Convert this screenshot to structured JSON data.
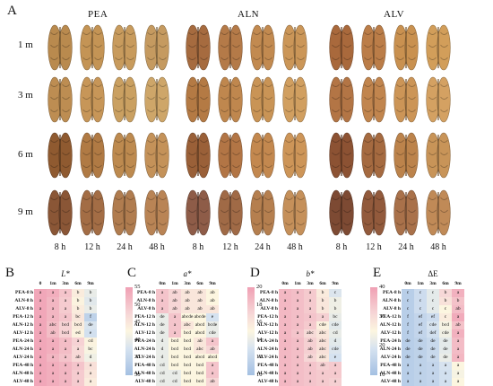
{
  "panel_a": {
    "label": "A",
    "groups": [
      "PEA",
      "ALN",
      "ALV"
    ],
    "row_labels": [
      "1 m",
      "3 m",
      "6 m",
      "9 m"
    ],
    "column_labels": [
      "8 h",
      "12 h",
      "24 h",
      "48 h"
    ],
    "kernel_colors": {
      "PEA": [
        [
          "#b98a4e",
          "#c49455",
          "#c89b5d",
          "#c59a60"
        ],
        [
          "#bd8d52",
          "#c79658",
          "#caa061",
          "#cea669"
        ],
        [
          "#8f5a30",
          "#b07a44",
          "#bd8a4f",
          "#c49259"
        ],
        [
          "#8a5636",
          "#a36d45",
          "#b07c4f",
          "#b98455"
        ]
      ],
      "ALN": [
        [
          "#a66b3f",
          "#b47a48",
          "#c28a50",
          "#cb9658"
        ],
        [
          "#b47a44",
          "#bf874e",
          "#c99456",
          "#d19f60"
        ],
        [
          "#9a6038",
          "#b27545",
          "#c3884f",
          "#cd9558"
        ],
        [
          "#8e5c48",
          "#a06a46",
          "#b57f4f",
          "#c5905a"
        ]
      ],
      "ALV": [
        [
          "#a9693c",
          "#bb7d48",
          "#c99150",
          "#d29e5a"
        ],
        [
          "#b37545",
          "#c1854e",
          "#cc9557",
          "#d4a162"
        ],
        [
          "#8c5233",
          "#a56a40",
          "#bc834b",
          "#c89458"
        ],
        [
          "#7d4a33",
          "#925a3c",
          "#a9714a",
          "#c08a57"
        ]
      ]
    }
  },
  "heatmaps": [
    {
      "label": "B",
      "title": "L*",
      "cols": [
        "0",
        "1m",
        "3m",
        "6m",
        "9m"
      ],
      "rows": [
        "PEA-8 h",
        "ALN-8 h",
        "ALV-8 h",
        "PEA-12 h",
        "ALN-12 h",
        "ALV-12 h",
        "PEA-24 h",
        "ALN-24 h",
        "ALV-24 h",
        "PEA-48 h",
        "ALN-48 h",
        "ALV-48 h"
      ],
      "cells": [
        [
          "a",
          "a",
          "a",
          "b",
          "b"
        ],
        [
          "a",
          "a",
          "a",
          "b",
          "b"
        ],
        [
          "a",
          "a",
          "a",
          "b",
          "b"
        ],
        [
          "a",
          "a",
          "a",
          "bc",
          "f"
        ],
        [
          "a",
          "abc",
          "bcd",
          "bcd",
          "de"
        ],
        [
          "a",
          "ab",
          "bcd",
          "ed",
          "e"
        ],
        [
          "a",
          "a",
          "a",
          "a",
          "cd"
        ],
        [
          "a",
          "a",
          "a",
          "a",
          "bc"
        ],
        [
          "a",
          "a",
          "a",
          "ab",
          "d"
        ],
        [
          "a",
          "a",
          "a",
          "a",
          "a"
        ],
        [
          "a",
          "a",
          "a",
          "a",
          "a"
        ],
        [
          "a",
          "a",
          "a",
          "a",
          "a"
        ]
      ],
      "values": [
        [
          54,
          53,
          50,
          44,
          40
        ],
        [
          54,
          52,
          49,
          43,
          39
        ],
        [
          54,
          52,
          49,
          44,
          40
        ],
        [
          54,
          52,
          50,
          45,
          34
        ],
        [
          54,
          51,
          48,
          44,
          38
        ],
        [
          54,
          51,
          48,
          43,
          37
        ],
        [
          54,
          53,
          51,
          48,
          43
        ],
        [
          54,
          53,
          51,
          47,
          42
        ],
        [
          54,
          52,
          50,
          47,
          41
        ],
        [
          54,
          53,
          52,
          50,
          46
        ],
        [
          54,
          53,
          52,
          49,
          45
        ],
        [
          54,
          53,
          52,
          49,
          44
        ]
      ],
      "range": [
        30,
        55
      ],
      "ticks": [
        "55",
        "50",
        "45",
        "40",
        "35",
        "30"
      ],
      "reversed": false
    },
    {
      "label": "C",
      "title": "a*",
      "cols": [
        "0m",
        "1m",
        "3m",
        "6m",
        "9m"
      ],
      "rows": [
        "PEA-8 h",
        "ALN-8 h",
        "ALV-8 h",
        "PEA-12 h",
        "ALN-12 h",
        "ALV-12 h",
        "PEA-24 h",
        "ALN-24 h",
        "ALV-24 h",
        "PEA-48 h",
        "ALN-48 h",
        "ALV-48 h"
      ],
      "cells": [
        [
          "a",
          "ab",
          "ab",
          "ab",
          "ab"
        ],
        [
          "a",
          "ab",
          "ab",
          "ab",
          "ab"
        ],
        [
          "a",
          "ab",
          "ab",
          "ab",
          "ab"
        ],
        [
          "de",
          "a",
          "abcde",
          "abcde",
          "e"
        ],
        [
          "de",
          "a",
          "abc",
          "abcd",
          "bcde"
        ],
        [
          "de",
          "a",
          "bcd",
          "abcd",
          "cde"
        ],
        [
          "d",
          "bcd",
          "bcd",
          "ab",
          "a"
        ],
        [
          "d",
          "bcd",
          "bcd",
          "abc",
          "ab"
        ],
        [
          "d",
          "bcd",
          "bcd",
          "abcd",
          "abcd"
        ],
        [
          "cd",
          "bcd",
          "bcd",
          "bcd",
          "a"
        ],
        [
          "cd",
          "cd",
          "bcd",
          "bcd",
          "a"
        ],
        [
          "cd",
          "cd",
          "bcd",
          "bcd",
          "ab"
        ]
      ],
      "values": [
        [
          18,
          17,
          16,
          16,
          15
        ],
        [
          18,
          17,
          16,
          16,
          15
        ],
        [
          18,
          17,
          16,
          16,
          16
        ],
        [
          14,
          18,
          15,
          15,
          13
        ],
        [
          14,
          18,
          16,
          15,
          14
        ],
        [
          14,
          18,
          15,
          15,
          14
        ],
        [
          14,
          15,
          15,
          16,
          18
        ],
        [
          14,
          15,
          15,
          16,
          17
        ],
        [
          14,
          15,
          15,
          15,
          15
        ],
        [
          14,
          15,
          15,
          15,
          18
        ],
        [
          14,
          14,
          15,
          15,
          18
        ],
        [
          14,
          14,
          15,
          15,
          17
        ]
      ],
      "range": [
        10,
        20
      ],
      "ticks": [
        "20",
        "18",
        "16",
        "14",
        "12",
        "10"
      ],
      "reversed": false
    },
    {
      "label": "D",
      "title": "b*",
      "cols": [
        "0m",
        "1m",
        "3m",
        "6m",
        "9m"
      ],
      "rows": [
        "PEA-8 h",
        "ALN-8 h",
        "ALV-8 h",
        "PEA-12 h",
        "ALN-12 h",
        "ALV-12 h",
        "PEA-24 h",
        "ALN-24 h",
        "ALV-24 h",
        "PEA-48 h",
        "ALN-48 h",
        "ALV-48 h"
      ],
      "cells": [
        [
          "a",
          "a",
          "a",
          "b",
          "c"
        ],
        [
          "a",
          "a",
          "a",
          "b",
          "b"
        ],
        [
          "a",
          "a",
          "a",
          "b",
          "b"
        ],
        [
          "a",
          "a",
          "a",
          "a",
          "bc"
        ],
        [
          "a",
          "a",
          "a",
          "cde",
          "cde"
        ],
        [
          "a",
          "a",
          "abc",
          "abc",
          "cd"
        ],
        [
          "a",
          "a",
          "ab",
          "abc",
          "d"
        ],
        [
          "a",
          "a",
          "ab",
          "abc",
          "cde"
        ],
        [
          "a",
          "a",
          "ab",
          "abc",
          "e"
        ],
        [
          "a",
          "a",
          "a",
          "ab",
          "a"
        ],
        [
          "a",
          "a",
          "a",
          "a",
          "a"
        ],
        [
          "a",
          "a",
          "a",
          "a",
          "a"
        ]
      ],
      "values": [
        [
          36,
          35,
          33,
          27,
          20
        ],
        [
          36,
          35,
          33,
          28,
          23
        ],
        [
          36,
          35,
          33,
          28,
          23
        ],
        [
          36,
          35,
          34,
          32,
          22
        ],
        [
          36,
          35,
          33,
          26,
          21
        ],
        [
          36,
          34,
          30,
          28,
          22
        ],
        [
          36,
          35,
          32,
          29,
          21
        ],
        [
          36,
          35,
          32,
          29,
          20
        ],
        [
          36,
          35,
          31,
          28,
          19
        ],
        [
          36,
          35,
          34,
          32,
          33
        ],
        [
          36,
          35,
          34,
          33,
          33
        ],
        [
          36,
          35,
          34,
          33,
          32
        ]
      ],
      "range": [
        10,
        40
      ],
      "ticks": [
        "40",
        "30",
        "20",
        "10"
      ],
      "reversed": false
    },
    {
      "label": "E",
      "title": "ΔE",
      "cols": [
        "0m",
        "1m",
        "3m",
        "6m",
        "9m"
      ],
      "rows": [
        "PEA-8 h",
        "ALN-8 h",
        "ALV-8 h",
        "PEA-12 h",
        "ALN-12 h",
        "ALV-12 h",
        "PEA-24 h",
        "ALN-24 h",
        "ALV-24 h",
        "PEA-48 h",
        "ALN-48 h",
        "ALV-48 h"
      ],
      "cells": [
        [
          "c",
          "c",
          "c",
          "b",
          "a"
        ],
        [
          "c",
          "c",
          "c",
          "b",
          "b"
        ],
        [
          "c",
          "c",
          "c",
          "c",
          "ab"
        ],
        [
          "f",
          "ef",
          "ef",
          "c",
          "a"
        ],
        [
          "f",
          "ef",
          "cde",
          "bcd",
          "ab"
        ],
        [
          "f",
          "ef",
          "def",
          "cde",
          "a"
        ],
        [
          "de",
          "de",
          "de",
          "de",
          "a"
        ],
        [
          "de",
          "de",
          "de",
          "de",
          "a"
        ],
        [
          "de",
          "de",
          "de",
          "de",
          "a"
        ],
        [
          "a",
          "a",
          "a",
          "a",
          "a"
        ],
        [
          "a",
          "a",
          "a",
          "a",
          "a"
        ],
        [
          "a",
          "a",
          "a",
          "a",
          "a"
        ]
      ],
      "values": [
        [
          4,
          8,
          12,
          22,
          29
        ],
        [
          4,
          8,
          12,
          20,
          26
        ],
        [
          4,
          8,
          12,
          16,
          27
        ],
        [
          4,
          6,
          8,
          18,
          30
        ],
        [
          4,
          6,
          10,
          15,
          26
        ],
        [
          4,
          6,
          9,
          14,
          29
        ],
        [
          4,
          5,
          7,
          12,
          27
        ],
        [
          4,
          5,
          7,
          12,
          27
        ],
        [
          4,
          5,
          7,
          13,
          28
        ],
        [
          4,
          5,
          6,
          10,
          16
        ],
        [
          4,
          5,
          6,
          9,
          15
        ],
        [
          4,
          5,
          6,
          9,
          16
        ]
      ],
      "range": [
        0,
        32
      ],
      "ticks": [
        "30",
        "20",
        "10",
        "0"
      ],
      "reversed": false
    }
  ]
}
